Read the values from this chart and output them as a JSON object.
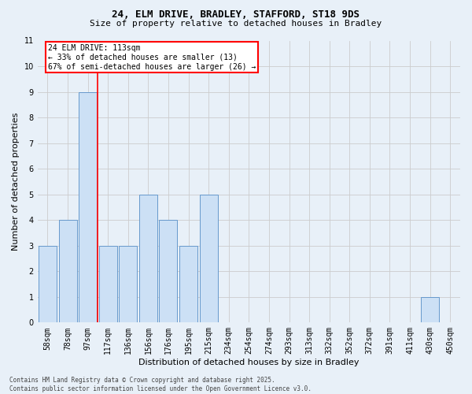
{
  "title_line1": "24, ELM DRIVE, BRADLEY, STAFFORD, ST18 9DS",
  "title_line2": "Size of property relative to detached houses in Bradley",
  "xlabel": "Distribution of detached houses by size in Bradley",
  "ylabel": "Number of detached properties",
  "categories": [
    "58sqm",
    "78sqm",
    "97sqm",
    "117sqm",
    "136sqm",
    "156sqm",
    "176sqm",
    "195sqm",
    "215sqm",
    "234sqm",
    "254sqm",
    "274sqm",
    "293sqm",
    "313sqm",
    "332sqm",
    "352sqm",
    "372sqm",
    "391sqm",
    "411sqm",
    "430sqm",
    "450sqm"
  ],
  "values": [
    3,
    4,
    9,
    3,
    3,
    5,
    4,
    3,
    5,
    0,
    0,
    0,
    0,
    0,
    0,
    0,
    0,
    0,
    0,
    1,
    0
  ],
  "bar_color": "#cce0f5",
  "bar_edge_color": "#6699cc",
  "grid_color": "#cccccc",
  "background_color": "#e8f0f8",
  "red_line_x": 2.5,
  "annotation_line1": "24 ELM DRIVE: 113sqm",
  "annotation_line2": "← 33% of detached houses are smaller (13)",
  "annotation_line3": "67% of semi-detached houses are larger (26) →",
  "annotation_box_color": "white",
  "annotation_box_edge": "red",
  "footer_line1": "Contains HM Land Registry data © Crown copyright and database right 2025.",
  "footer_line2": "Contains public sector information licensed under the Open Government Licence v3.0.",
  "ylim": [
    0,
    11
  ],
  "yticks": [
    0,
    1,
    2,
    3,
    4,
    5,
    6,
    7,
    8,
    9,
    10,
    11
  ],
  "title_fontsize": 9,
  "subtitle_fontsize": 8,
  "ylabel_fontsize": 8,
  "xlabel_fontsize": 8,
  "tick_fontsize": 7,
  "annot_fontsize": 7,
  "footer_fontsize": 5.5
}
